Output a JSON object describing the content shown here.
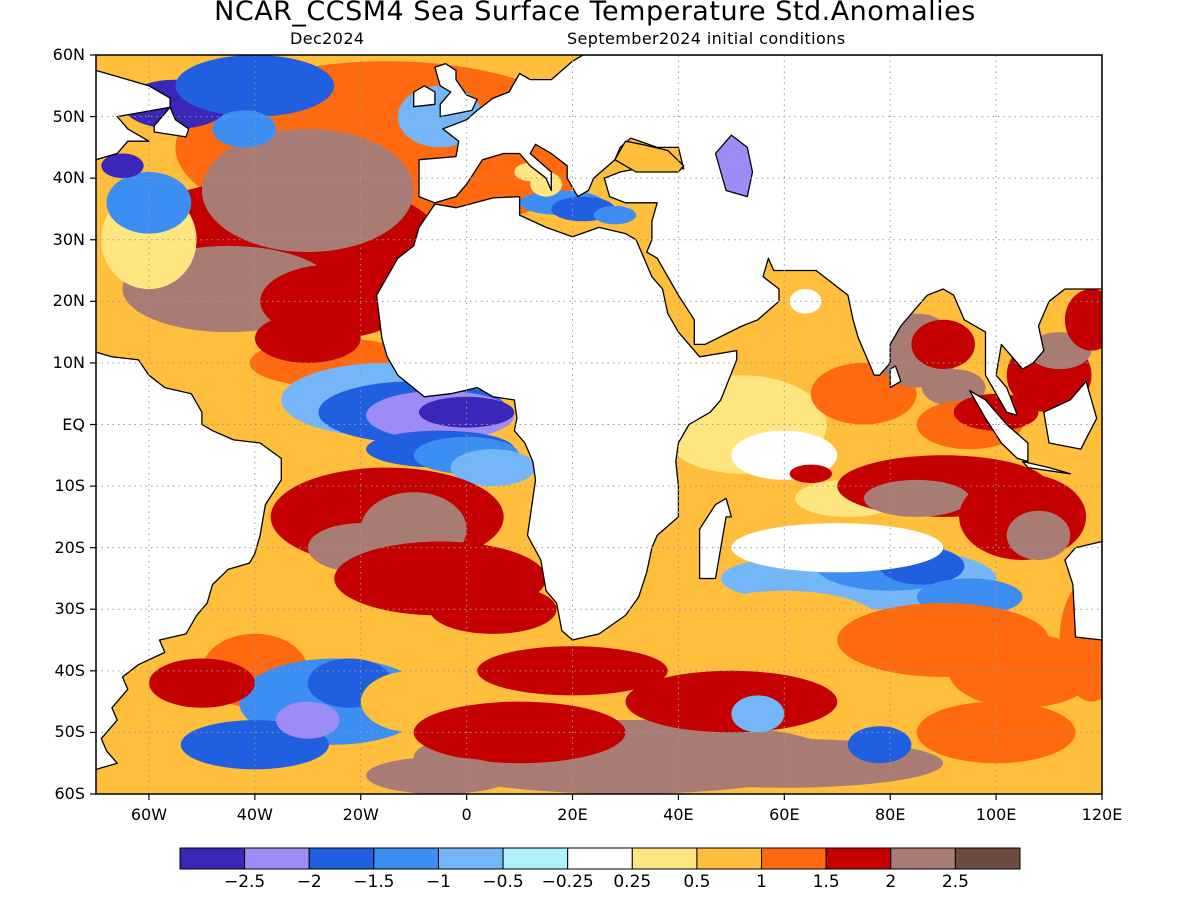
{
  "title": "NCAR_CCSM4 Sea Surface Temperature Std.Anomalies",
  "subtitle_left": "Dec2024",
  "subtitle_right": "September2024 initial conditions",
  "map": {
    "projection": "equirectangular",
    "lon_range": [
      -70,
      120
    ],
    "lat_range": [
      -60,
      60
    ],
    "grid": true,
    "y_tick_labels": [
      "60N",
      "50N",
      "40N",
      "30N",
      "20N",
      "10N",
      "EQ",
      "10S",
      "20S",
      "30S",
      "40S",
      "50S",
      "60S"
    ],
    "x_tick_labels": [
      "60W",
      "40W",
      "20W",
      "0",
      "20E",
      "40E",
      "60E",
      "80E",
      "100E",
      "120E"
    ],
    "land_color": "#ffffff",
    "coastline_color": "#000000"
  },
  "colorbar": {
    "tick_labels": [
      "−2.5",
      "−2",
      "−1.5",
      "−1",
      "−0.5",
      "−0.25",
      "0.25",
      "0.5",
      "1",
      "1.5",
      "2",
      "2.5"
    ],
    "colors": [
      "#3a26b8",
      "#9e8cf6",
      "#1f5fe0",
      "#3d8ef2",
      "#74b6f7",
      "#b0f0fa",
      "#ffffff",
      "#ffe680",
      "#ffbf3c",
      "#ff6a10",
      "#c40000",
      "#a87c74",
      "#6e4b40"
    ]
  },
  "anomaly_regions": [
    {
      "name": "NW Atlantic cold core",
      "value": -2.5
    },
    {
      "name": "North Atlantic warm band",
      "value": 2.5
    },
    {
      "name": "Equatorial Atlantic cold tongue",
      "value": -2.5
    },
    {
      "name": "Subtropical South Atlantic warm",
      "value": 2.5
    },
    {
      "name": "SW Atlantic cold",
      "value": -1.5
    },
    {
      "name": "Southern Ocean warm",
      "value": 2.5
    },
    {
      "name": "Mediterranean cool",
      "value": -1.5
    },
    {
      "name": "Western Indian Ocean warm",
      "value": 1
    },
    {
      "name": "South Indian Ocean cool band",
      "value": -1
    },
    {
      "name": "Bay of Bengal warm",
      "value": 2
    },
    {
      "name": "East Indian Ocean warm",
      "value": 2.5
    }
  ]
}
